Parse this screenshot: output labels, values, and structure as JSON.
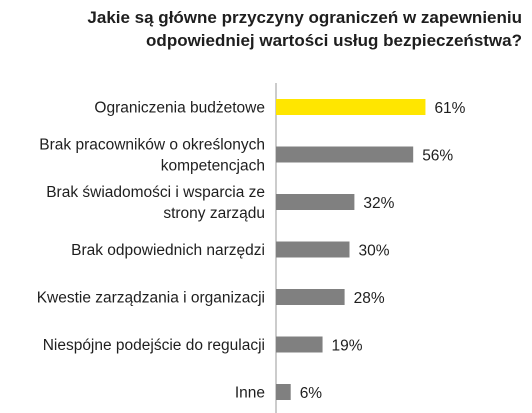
{
  "chart_data": {
    "type": "bar",
    "orientation": "horizontal",
    "title": [
      "Jakie są główne przyczyny ograniczeń w zapewnieniu",
      "odpowiedniej wartości usług bezpieczeństwa?"
    ],
    "categories": [
      [
        "Ograniczenia budżetowe"
      ],
      [
        "Brak pracowników o określonych",
        "kompetencjach"
      ],
      [
        "Brak świadomości i wsparcia ze",
        "strony zarządu"
      ],
      [
        "Brak odpowiednich narzędzi"
      ],
      [
        "Kwestie zarządzania i organizacji"
      ],
      [
        "Niespójne podejście do regulacji"
      ],
      [
        "Inne"
      ]
    ],
    "values": [
      61,
      56,
      32,
      30,
      28,
      19,
      6
    ],
    "value_labels": [
      "61%",
      "56%",
      "32%",
      "30%",
      "28%",
      "19%",
      "6%"
    ],
    "unit": "%",
    "xlim": [
      0,
      100
    ],
    "grid": false,
    "highlight_color": "#ffe600",
    "bar_color": "#808080",
    "axis_color": "#9a9a9a"
  }
}
